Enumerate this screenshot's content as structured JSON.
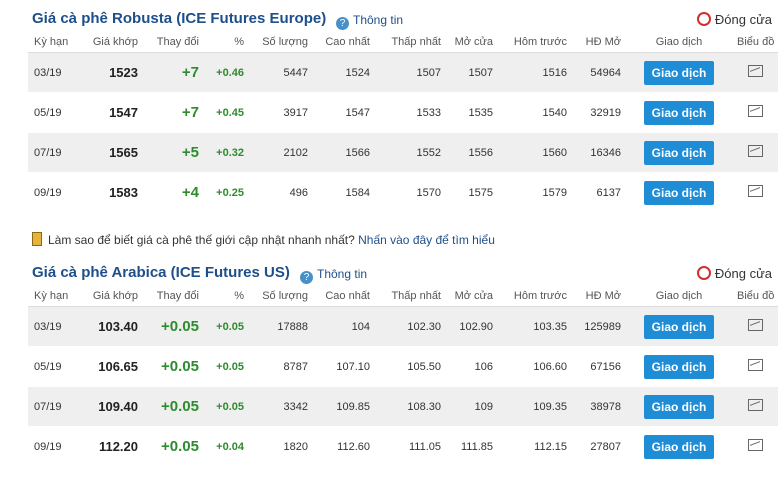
{
  "sections": [
    {
      "title": "Giá cà phê Robusta (ICE Futures Europe)",
      "info": "Thông tin",
      "status": "Đóng cửa",
      "headers": [
        "Kỳ hạn",
        "Giá khớp",
        "Thay đổi",
        "%",
        "Số lượng",
        "Cao nhất",
        "Thấp nhất",
        "Mở cửa",
        "Hôm trước",
        "HĐ Mở",
        "Giao dịch",
        "Biểu đồ"
      ],
      "rows": [
        [
          "03/19",
          "1523",
          "+7",
          "+0.46",
          "5447",
          "1524",
          "1507",
          "1507",
          "1516",
          "54964",
          "Giao dịch"
        ],
        [
          "05/19",
          "1547",
          "+7",
          "+0.45",
          "3917",
          "1547",
          "1533",
          "1535",
          "1540",
          "32919",
          "Giao dịch"
        ],
        [
          "07/19",
          "1565",
          "+5",
          "+0.32",
          "2102",
          "1566",
          "1552",
          "1556",
          "1560",
          "16346",
          "Giao dịch"
        ],
        [
          "09/19",
          "1583",
          "+4",
          "+0.25",
          "496",
          "1584",
          "1570",
          "1575",
          "1579",
          "6137",
          "Giao dịch"
        ]
      ]
    },
    {
      "title": "Giá cà phê Arabica (ICE Futures US)",
      "info": "Thông tin",
      "status": "Đóng cửa",
      "headers": [
        "Kỳ hạn",
        "Giá khớp",
        "Thay đổi",
        "%",
        "Số lượng",
        "Cao nhất",
        "Thấp nhất",
        "Mở cửa",
        "Hôm trước",
        "HĐ Mở",
        "Giao dịch",
        "Biểu đồ"
      ],
      "rows": [
        [
          "03/19",
          "103.40",
          "+0.05",
          "+0.05",
          "17888",
          "104",
          "102.30",
          "102.90",
          "103.35",
          "125989",
          "Giao dịch"
        ],
        [
          "05/19",
          "106.65",
          "+0.05",
          "+0.05",
          "8787",
          "107.10",
          "105.50",
          "106",
          "106.60",
          "67156",
          "Giao dịch"
        ],
        [
          "07/19",
          "109.40",
          "+0.05",
          "+0.05",
          "3342",
          "109.85",
          "108.30",
          "109",
          "109.35",
          "38978",
          "Giao dịch"
        ],
        [
          "09/19",
          "112.20",
          "+0.05",
          "+0.04",
          "1820",
          "112.60",
          "111.05",
          "111.85",
          "112.15",
          "27807",
          "Giao dịch"
        ]
      ]
    }
  ],
  "note": {
    "question": "Làm sao để biết giá cà phê thế giới cập nhật nhanh nhất?",
    "link": "Nhấn vào đây để tìm hiểu"
  }
}
